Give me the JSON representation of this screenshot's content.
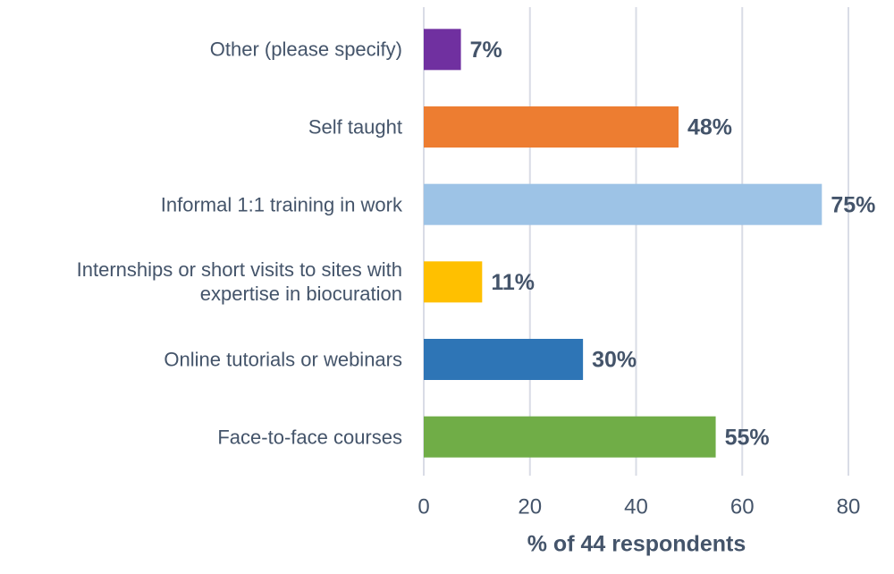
{
  "chart_data": {
    "type": "barh",
    "categories": [
      "Other (please specify)",
      "Self taught",
      "Informal 1:1 training in work",
      "Internships or short visits to sites with expertise in biocuration",
      "Online tutorials or webinars",
      "Face-to-face courses"
    ],
    "values": [
      7,
      48,
      75,
      11,
      30,
      55
    ],
    "value_labels": [
      "7%",
      "48%",
      "75%",
      "11%",
      "30%",
      "55%"
    ],
    "colors": [
      "#7030a0",
      "#ed7d31",
      "#9dc3e6",
      "#ffc000",
      "#2e75b6",
      "#70ad47"
    ],
    "x_label": "% of 44 respondents",
    "xlim": [
      0,
      80
    ],
    "xticks": [
      0,
      20,
      40,
      60,
      80
    ],
    "grid": true
  }
}
